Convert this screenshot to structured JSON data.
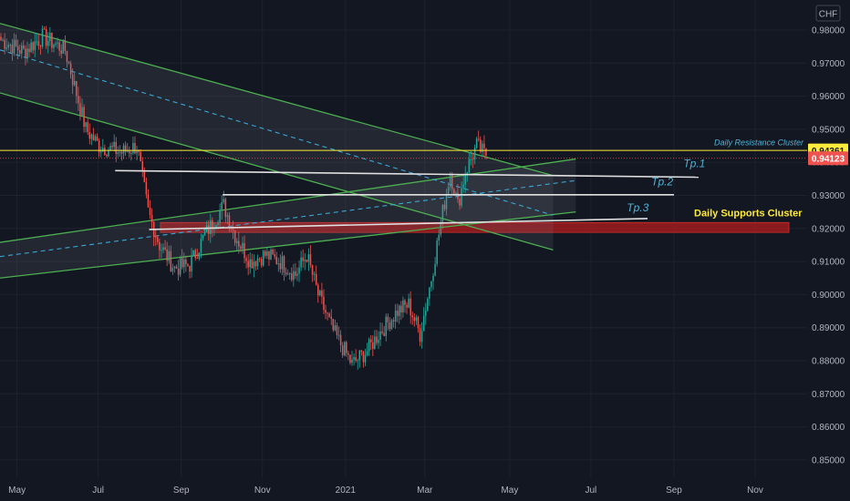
{
  "chart_data": {
    "type": "candlestick",
    "currency": "CHF",
    "ylim": [
      0.846,
      0.984
    ],
    "y_ticks": [
      "0.98000",
      "0.97000",
      "0.96000",
      "0.95000",
      "0.94000",
      "0.93000",
      "0.92000",
      "0.91000",
      "0.90000",
      "0.89000",
      "0.88000",
      "0.87000",
      "0.86000",
      "0.85000"
    ],
    "y_tick_values": [
      0.98,
      0.97,
      0.96,
      0.95,
      0.94,
      0.93,
      0.92,
      0.91,
      0.9,
      0.89,
      0.88,
      0.87,
      0.86,
      0.85
    ],
    "x_ticks": [
      "May",
      "Jul",
      "Sep",
      "Nov",
      "2021",
      "Mar",
      "May",
      "Jul",
      "Sep",
      "Nov"
    ],
    "x_tick_index": [
      9,
      52,
      96,
      139,
      183,
      225,
      270,
      313,
      357,
      400
    ],
    "bars_total": 428,
    "price_anchors": [
      [
        0,
        0.977
      ],
      [
        12,
        0.9735
      ],
      [
        22,
        0.978
      ],
      [
        34,
        0.974
      ],
      [
        45,
        0.95
      ],
      [
        52,
        0.945
      ],
      [
        64,
        0.943
      ],
      [
        72,
        0.945
      ],
      [
        78,
        0.925
      ],
      [
        84,
        0.915
      ],
      [
        92,
        0.908
      ],
      [
        100,
        0.909
      ],
      [
        108,
        0.918
      ],
      [
        118,
        0.927
      ],
      [
        124,
        0.918
      ],
      [
        132,
        0.91
      ],
      [
        140,
        0.912
      ],
      [
        148,
        0.91
      ],
      [
        156,
        0.906
      ],
      [
        162,
        0.912
      ],
      [
        168,
        0.9
      ],
      [
        176,
        0.889
      ],
      [
        186,
        0.879
      ],
      [
        194,
        0.883
      ],
      [
        200,
        0.888
      ],
      [
        210,
        0.895
      ],
      [
        216,
        0.897
      ],
      [
        222,
        0.888
      ],
      [
        228,
        0.905
      ],
      [
        234,
        0.925
      ],
      [
        238,
        0.937
      ],
      [
        242,
        0.927
      ],
      [
        246,
        0.937
      ],
      [
        252,
        0.945
      ],
      [
        257,
        0.942
      ]
    ],
    "last_price": "0.94123",
    "daily_resistance": "0.94361",
    "resistance_value": 0.94361,
    "support_zone": [
      0.9188,
      0.9218
    ],
    "channel_lines": [
      {
        "p1": [
          0,
          0.982
        ],
        "p2": [
          293,
          0.936
        ],
        "color": "#4caf50"
      },
      {
        "p1": [
          0,
          0.961
        ],
        "p2": [
          293,
          0.9135
        ],
        "color": "#4caf50"
      },
      {
        "p1": [
          0,
          0.9158
        ],
        "p2": [
          305,
          0.941
        ],
        "color": "#4caf50"
      },
      {
        "p1": [
          0,
          0.905
        ],
        "p2": [
          305,
          0.925
        ],
        "color": "#4caf50"
      }
    ],
    "dashed_lines": [
      {
        "p1": [
          0,
          0.974
        ],
        "p2": [
          293,
          0.924
        ]
      },
      {
        "p1": [
          0,
          0.9115
        ],
        "p2": [
          305,
          0.9345
        ]
      }
    ],
    "targets": [
      {
        "label": "Tp.1",
        "from": [
          61,
          0.9375
        ],
        "to": [
          370,
          0.9355
        ],
        "label_at": [
          362,
          0.9385
        ]
      },
      {
        "label": "Tp.2",
        "from": [
          118,
          0.9302
        ],
        "to": [
          357,
          0.9302
        ],
        "label_at": [
          345,
          0.933
        ]
      },
      {
        "label": "Tp.3",
        "from": [
          79,
          0.9197
        ],
        "to": [
          343,
          0.923
        ],
        "label_at": [
          332,
          0.9252
        ]
      }
    ],
    "annotations": {
      "daily_resistance_label": "Daily Resistance Cluster",
      "daily_supports_label": "Daily Supports Cluster"
    },
    "colors": {
      "background": "#131722",
      "up": "#26a69a",
      "down": "#ef5350",
      "resistance_line": "#ffeb3b",
      "support_zone": "#b71c1c",
      "channel": "#4caf50",
      "dashed": "#3aa7d6",
      "target_line": "#e0e0e0",
      "last_price_tag": "#ef5350",
      "resistance_tag": "#ffeb3b"
    }
  }
}
